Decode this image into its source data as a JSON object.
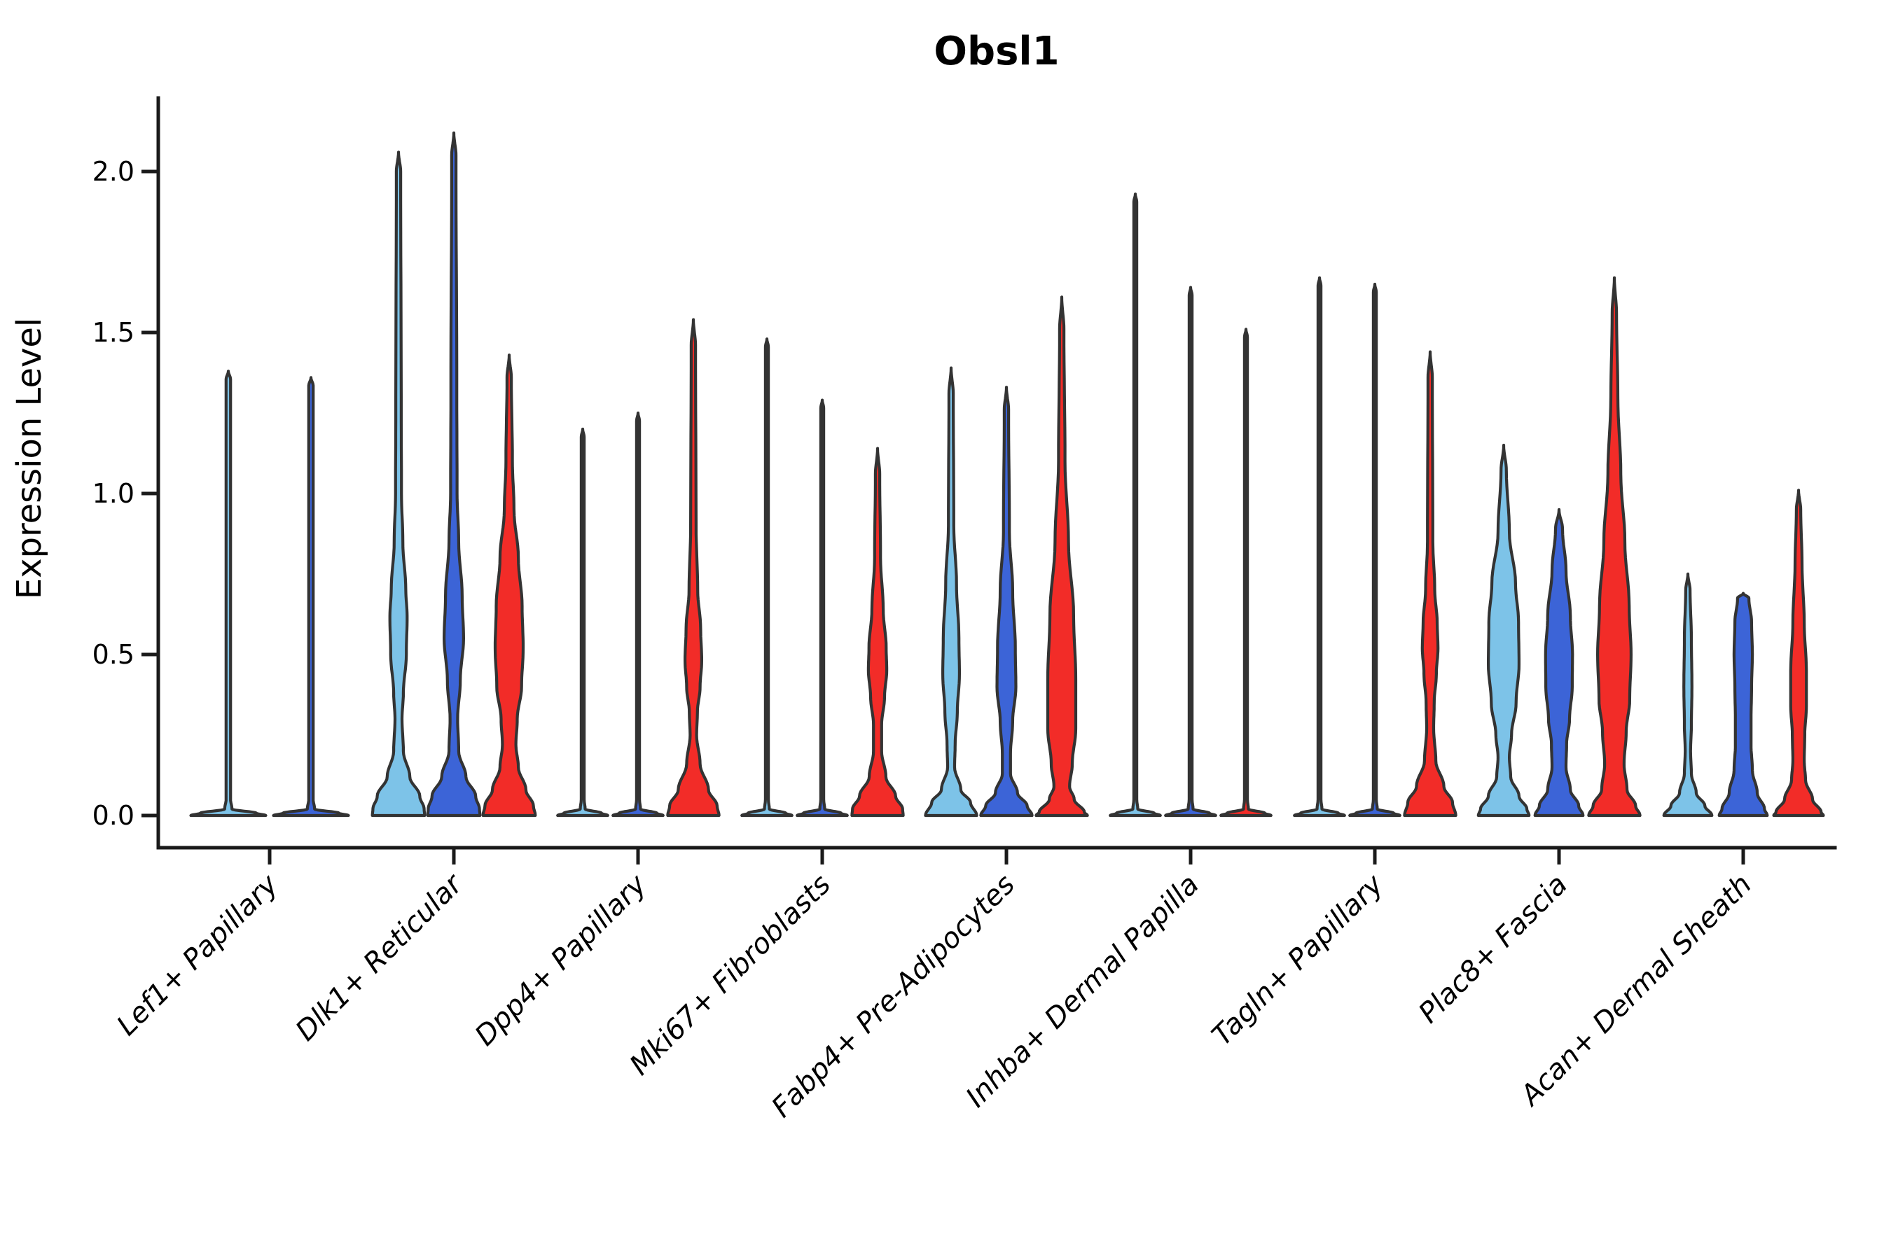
{
  "figure": {
    "background": "#ffffff"
  },
  "chart_data": {
    "type": "violin",
    "title": "Obsl1",
    "ylabel": "Expression Level",
    "xlabel": "",
    "ylim": [
      0,
      2.25
    ],
    "yticks": [
      0.0,
      0.5,
      1.0,
      1.5,
      2.0
    ],
    "ytick_labels": [
      "0.0",
      "0.5",
      "1.0",
      "1.5",
      "2.0"
    ],
    "grid": false,
    "legend": "none",
    "outline_color": "#333333",
    "axis_color": "#1a1a1a",
    "series": [
      {
        "name": "light-blue",
        "color": "#7DC3E8"
      },
      {
        "name": "blue",
        "color": "#3C64D7"
      },
      {
        "name": "red",
        "color": "#F22C28"
      }
    ],
    "categories": [
      "Lef1+ Papillary",
      "Dlk1+ Reticular",
      "Dpp4+ Papillary",
      "Mki67+ Fibroblasts",
      "Fabp4+ Pre-Adipocytes",
      "Inhba+ Dermal Papilla",
      "Tagln+ Papillary",
      "Plac8+ Fascia",
      "Acan+ Dermal Sheath"
    ],
    "groups": [
      {
        "category": "Lef1+ Papillary",
        "violins": [
          {
            "series": 0,
            "shape": "spike",
            "max": 1.38
          },
          {
            "series": 1,
            "shape": "spike",
            "max": 1.36
          }
        ]
      },
      {
        "category": "Dlk1+ Reticular",
        "violins": [
          {
            "series": 0,
            "shape": "full",
            "max": 2.06,
            "profile": [
              [
                2.06,
                0
              ],
              [
                2.0,
                0.08
              ],
              [
                1.3,
                0.1
              ],
              [
                1.0,
                0.11
              ],
              [
                0.85,
                0.16
              ],
              [
                0.7,
                0.27
              ],
              [
                0.62,
                0.32
              ],
              [
                0.5,
                0.29
              ],
              [
                0.38,
                0.18
              ],
              [
                0.3,
                0.13
              ],
              [
                0.2,
                0.18
              ],
              [
                0.12,
                0.42
              ],
              [
                0.06,
                0.79
              ],
              [
                0.02,
                0.95
              ],
              [
                0,
                0.97
              ]
            ]
          },
          {
            "series": 1,
            "shape": "full",
            "max": 2.12,
            "profile": [
              [
                2.12,
                0
              ],
              [
                2.05,
                0.08
              ],
              [
                1.3,
                0.11
              ],
              [
                1.0,
                0.12
              ],
              [
                0.85,
                0.18
              ],
              [
                0.68,
                0.31
              ],
              [
                0.55,
                0.36
              ],
              [
                0.42,
                0.24
              ],
              [
                0.3,
                0.14
              ],
              [
                0.2,
                0.18
              ],
              [
                0.12,
                0.45
              ],
              [
                0.06,
                0.81
              ],
              [
                0.02,
                0.95
              ],
              [
                0,
                0.97
              ]
            ]
          },
          {
            "series": 2,
            "shape": "full",
            "max": 1.43,
            "profile": [
              [
                1.43,
                0
              ],
              [
                1.36,
                0.08
              ],
              [
                1.1,
                0.12
              ],
              [
                0.95,
                0.18
              ],
              [
                0.8,
                0.34
              ],
              [
                0.65,
                0.48
              ],
              [
                0.52,
                0.52
              ],
              [
                0.4,
                0.46
              ],
              [
                0.3,
                0.3
              ],
              [
                0.22,
                0.25
              ],
              [
                0.15,
                0.34
              ],
              [
                0.08,
                0.62
              ],
              [
                0.03,
                0.9
              ],
              [
                0,
                0.97
              ]
            ]
          }
        ]
      },
      {
        "category": "Dpp4+ Papillary",
        "violins": [
          {
            "series": 0,
            "shape": "spike",
            "max": 1.2
          },
          {
            "series": 1,
            "shape": "spike",
            "max": 1.25
          },
          {
            "series": 2,
            "shape": "full",
            "max": 1.54,
            "profile": [
              [
                1.54,
                0
              ],
              [
                1.46,
                0.08
              ],
              [
                0.9,
                0.1
              ],
              [
                0.7,
                0.16
              ],
              [
                0.58,
                0.27
              ],
              [
                0.48,
                0.31
              ],
              [
                0.4,
                0.25
              ],
              [
                0.32,
                0.15
              ],
              [
                0.25,
                0.12
              ],
              [
                0.16,
                0.25
              ],
              [
                0.08,
                0.56
              ],
              [
                0.03,
                0.88
              ],
              [
                0,
                0.95
              ]
            ]
          }
        ]
      },
      {
        "category": "Mki67+ Fibroblasts",
        "violins": [
          {
            "series": 0,
            "shape": "spike",
            "max": 1.48
          },
          {
            "series": 1,
            "shape": "spike",
            "max": 1.29
          },
          {
            "series": 2,
            "shape": "full",
            "max": 1.14,
            "profile": [
              [
                1.14,
                0
              ],
              [
                1.06,
                0.08
              ],
              [
                0.8,
                0.11
              ],
              [
                0.64,
                0.21
              ],
              [
                0.52,
                0.32
              ],
              [
                0.45,
                0.34
              ],
              [
                0.37,
                0.26
              ],
              [
                0.28,
                0.15
              ],
              [
                0.2,
                0.15
              ],
              [
                0.12,
                0.31
              ],
              [
                0.06,
                0.67
              ],
              [
                0.02,
                0.93
              ],
              [
                0,
                0.95
              ]
            ]
          }
        ]
      },
      {
        "category": "Fabp4+ Pre-Adipocytes",
        "violins": [
          {
            "series": 0,
            "shape": "full",
            "max": 1.39,
            "profile": [
              [
                1.39,
                0
              ],
              [
                1.31,
                0.08
              ],
              [
                0.9,
                0.1
              ],
              [
                0.72,
                0.2
              ],
              [
                0.55,
                0.29
              ],
              [
                0.44,
                0.31
              ],
              [
                0.32,
                0.23
              ],
              [
                0.22,
                0.15
              ],
              [
                0.15,
                0.13
              ],
              [
                0.08,
                0.36
              ],
              [
                0.04,
                0.72
              ],
              [
                0,
                0.95
              ]
            ]
          },
          {
            "series": 1,
            "shape": "full",
            "max": 1.33,
            "profile": [
              [
                1.33,
                0
              ],
              [
                1.26,
                0.08
              ],
              [
                0.88,
                0.11
              ],
              [
                0.7,
                0.23
              ],
              [
                0.52,
                0.33
              ],
              [
                0.4,
                0.35
              ],
              [
                0.29,
                0.23
              ],
              [
                0.19,
                0.15
              ],
              [
                0.13,
                0.15
              ],
              [
                0.07,
                0.41
              ],
              [
                0.03,
                0.77
              ],
              [
                0,
                0.95
              ]
            ]
          },
          {
            "series": 2,
            "shape": "full",
            "max": 1.61,
            "profile": [
              [
                1.61,
                0
              ],
              [
                1.51,
                0.08
              ],
              [
                1.1,
                0.12
              ],
              [
                0.85,
                0.25
              ],
              [
                0.62,
                0.44
              ],
              [
                0.42,
                0.52
              ],
              [
                0.27,
                0.52
              ],
              [
                0.16,
                0.39
              ],
              [
                0.09,
                0.29
              ],
              [
                0.05,
                0.46
              ],
              [
                0.01,
                0.84
              ],
              [
                0,
                0.95
              ]
            ]
          }
        ]
      },
      {
        "category": "Inhba+ Dermal Papilla",
        "violins": [
          {
            "series": 0,
            "shape": "spike",
            "max": 1.93
          },
          {
            "series": 1,
            "shape": "spike",
            "max": 1.64
          },
          {
            "series": 2,
            "shape": "spike",
            "max": 1.51
          }
        ]
      },
      {
        "category": "Tagln+ Papillary",
        "violins": [
          {
            "series": 0,
            "shape": "spike",
            "max": 1.67
          },
          {
            "series": 1,
            "shape": "spike",
            "max": 1.65
          },
          {
            "series": 2,
            "shape": "full",
            "max": 1.44,
            "profile": [
              [
                1.44,
                0
              ],
              [
                1.36,
                0.08
              ],
              [
                0.85,
                0.1
              ],
              [
                0.7,
                0.17
              ],
              [
                0.6,
                0.26
              ],
              [
                0.52,
                0.29
              ],
              [
                0.44,
                0.23
              ],
              [
                0.35,
                0.15
              ],
              [
                0.27,
                0.13
              ],
              [
                0.17,
                0.21
              ],
              [
                0.09,
                0.51
              ],
              [
                0.04,
                0.83
              ],
              [
                0,
                0.95
              ]
            ]
          }
        ]
      },
      {
        "category": "Plac8+ Fascia",
        "violins": [
          {
            "series": 0,
            "shape": "full",
            "max": 1.15,
            "profile": [
              [
                1.15,
                0
              ],
              [
                1.07,
                0.1
              ],
              [
                0.88,
                0.21
              ],
              [
                0.72,
                0.44
              ],
              [
                0.6,
                0.55
              ],
              [
                0.47,
                0.57
              ],
              [
                0.35,
                0.46
              ],
              [
                0.25,
                0.29
              ],
              [
                0.18,
                0.21
              ],
              [
                0.12,
                0.26
              ],
              [
                0.06,
                0.57
              ],
              [
                0.02,
                0.86
              ],
              [
                0,
                0.94
              ]
            ]
          },
          {
            "series": 1,
            "shape": "full",
            "max": 0.95,
            "profile": [
              [
                0.95,
                0
              ],
              [
                0.89,
                0.13
              ],
              [
                0.76,
                0.26
              ],
              [
                0.62,
                0.42
              ],
              [
                0.5,
                0.5
              ],
              [
                0.4,
                0.49
              ],
              [
                0.3,
                0.39
              ],
              [
                0.22,
                0.28
              ],
              [
                0.15,
                0.26
              ],
              [
                0.08,
                0.42
              ],
              [
                0.03,
                0.73
              ],
              [
                0,
                0.89
              ]
            ]
          },
          {
            "series": 2,
            "shape": "full",
            "max": 1.67,
            "profile": [
              [
                1.67,
                0
              ],
              [
                1.56,
                0.08
              ],
              [
                1.3,
                0.13
              ],
              [
                1.06,
                0.24
              ],
              [
                0.85,
                0.39
              ],
              [
                0.65,
                0.55
              ],
              [
                0.5,
                0.62
              ],
              [
                0.36,
                0.57
              ],
              [
                0.26,
                0.44
              ],
              [
                0.16,
                0.36
              ],
              [
                0.08,
                0.47
              ],
              [
                0.03,
                0.79
              ],
              [
                0,
                0.95
              ]
            ]
          }
        ]
      },
      {
        "category": "Acan+ Dermal Sheath",
        "violins": [
          {
            "series": 0,
            "shape": "full",
            "max": 0.75,
            "profile": [
              [
                0.75,
                0
              ],
              [
                0.7,
                0.08
              ],
              [
                0.55,
                0.13
              ],
              [
                0.4,
                0.15
              ],
              [
                0.28,
                0.13
              ],
              [
                0.2,
                0.1
              ],
              [
                0.13,
                0.13
              ],
              [
                0.07,
                0.31
              ],
              [
                0.03,
                0.63
              ],
              [
                0,
                0.89
              ]
            ]
          },
          {
            "series": 1,
            "shape": "full",
            "max": 0.69,
            "profile": [
              [
                0.69,
                0
              ],
              [
                0.675,
                0.21
              ],
              [
                0.6,
                0.31
              ],
              [
                0.5,
                0.34
              ],
              [
                0.4,
                0.31
              ],
              [
                0.3,
                0.29
              ],
              [
                0.22,
                0.29
              ],
              [
                0.14,
                0.34
              ],
              [
                0.07,
                0.52
              ],
              [
                0.02,
                0.79
              ],
              [
                0,
                0.89
              ]
            ]
          },
          {
            "series": 2,
            "shape": "full",
            "max": 1.01,
            "profile": [
              [
                1.01,
                0
              ],
              [
                0.95,
                0.08
              ],
              [
                0.78,
                0.13
              ],
              [
                0.6,
                0.21
              ],
              [
                0.45,
                0.29
              ],
              [
                0.34,
                0.29
              ],
              [
                0.25,
                0.23
              ],
              [
                0.17,
                0.21
              ],
              [
                0.11,
                0.26
              ],
              [
                0.05,
                0.52
              ],
              [
                0.01,
                0.84
              ],
              [
                0,
                0.92
              ]
            ]
          }
        ]
      }
    ]
  }
}
